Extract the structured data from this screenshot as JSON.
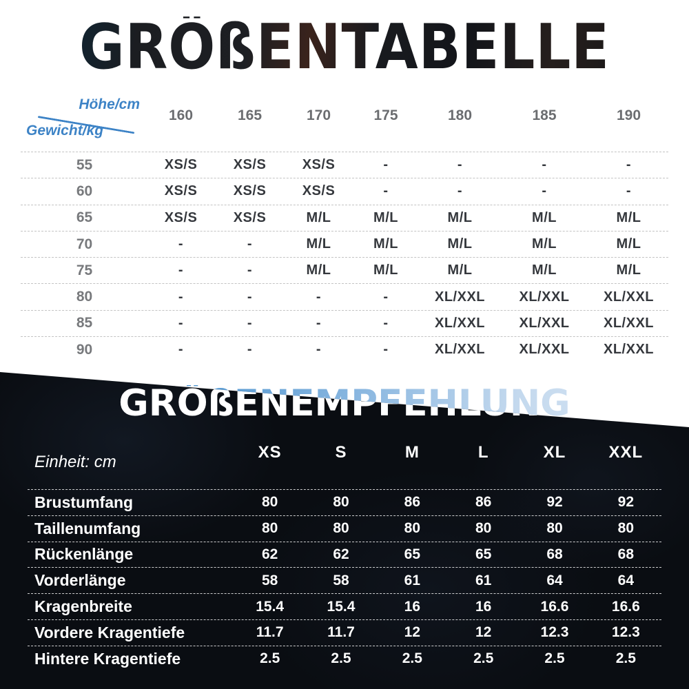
{
  "size_chart": {
    "title": "GRÖßENTABELLE",
    "axis": {
      "height_label": "Höhe/cm",
      "weight_label": "Gewicht/kg"
    },
    "columns": [
      "160",
      "165",
      "170",
      "175",
      "180",
      "185",
      "190"
    ],
    "rows": [
      {
        "weight": "55",
        "values": [
          "XS/S",
          "XS/S",
          "XS/S",
          "-",
          "-",
          "-",
          "-"
        ]
      },
      {
        "weight": "60",
        "values": [
          "XS/S",
          "XS/S",
          "XS/S",
          "-",
          "-",
          "-",
          "-"
        ]
      },
      {
        "weight": "65",
        "values": [
          "XS/S",
          "XS/S",
          "M/L",
          "M/L",
          "M/L",
          "M/L",
          "M/L"
        ]
      },
      {
        "weight": "70",
        "values": [
          "-",
          "-",
          "M/L",
          "M/L",
          "M/L",
          "M/L",
          "M/L"
        ]
      },
      {
        "weight": "75",
        "values": [
          "-",
          "-",
          "M/L",
          "M/L",
          "M/L",
          "M/L",
          "M/L"
        ]
      },
      {
        "weight": "80",
        "values": [
          "-",
          "-",
          "-",
          "-",
          "XL/XXL",
          "XL/XXL",
          "XL/XXL"
        ]
      },
      {
        "weight": "85",
        "values": [
          "-",
          "-",
          "-",
          "-",
          "XL/XXL",
          "XL/XXL",
          "XL/XXL"
        ]
      },
      {
        "weight": "90",
        "values": [
          "-",
          "-",
          "-",
          "-",
          "XL/XXL",
          "XL/XXL",
          "XL/XXL"
        ]
      }
    ]
  },
  "recommendation": {
    "title": "GRÖßENEMPFEHLUNG",
    "unit_label": "Einheit: cm",
    "columns": [
      "XS",
      "S",
      "M",
      "L",
      "XL",
      "XXL"
    ],
    "rows": [
      {
        "label": "Brustumfang",
        "values": [
          "80",
          "80",
          "86",
          "86",
          "92",
          "92"
        ]
      },
      {
        "label": "Taillenumfang",
        "values": [
          "80",
          "80",
          "80",
          "80",
          "80",
          "80"
        ]
      },
      {
        "label": "Rückenlänge",
        "values": [
          "62",
          "62",
          "65",
          "65",
          "68",
          "68"
        ]
      },
      {
        "label": "Vorderlänge",
        "values": [
          "58",
          "58",
          "61",
          "61",
          "64",
          "64"
        ]
      },
      {
        "label": "Kragenbreite",
        "values": [
          "15.4",
          "15.4",
          "16",
          "16",
          "16.6",
          "16.6"
        ]
      },
      {
        "label": "Vordere Kragentiefe",
        "values": [
          "11.7",
          "11.7",
          "12",
          "12",
          "12.3",
          "12.3"
        ]
      },
      {
        "label": "Hintere Kragentiefe",
        "values": [
          "2.5",
          "2.5",
          "2.5",
          "2.5",
          "2.5",
          "2.5"
        ]
      }
    ]
  },
  "colors": {
    "accent_blue": "#3d83c6",
    "dark_section_bg": "#0a0d12",
    "column_header_gray": "#6b6d70",
    "value_dark": "#35383d",
    "text_white": "#ffffff"
  }
}
